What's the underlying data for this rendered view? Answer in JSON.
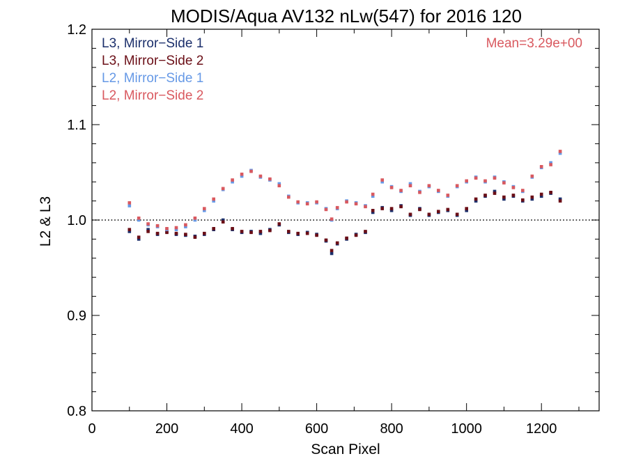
{
  "chart_data": {
    "type": "scatter",
    "title": "MODIS/Aqua AV132 nLw(547) for 2016 120",
    "xlabel": "Scan Pixel",
    "ylabel": "L2 & L3",
    "xlim": [
      0,
      1354
    ],
    "ylim": [
      0.8,
      1.2
    ],
    "xticks": [
      0,
      200,
      400,
      600,
      800,
      1000,
      1200
    ],
    "xtick_labels": [
      "0",
      "200",
      "400",
      "600",
      "800",
      "1000",
      "1200"
    ],
    "yticks": [
      0.8,
      0.9,
      1.0,
      1.1,
      1.2
    ],
    "ytick_labels": [
      "0.8",
      "0.9",
      "1.0",
      "1.1",
      "1.2"
    ],
    "reference_line": 1.0,
    "annotation": "Mean=3.29e+00",
    "annotation_color": "#d9595f",
    "grid": false,
    "legend_position": "top-left",
    "series": [
      {
        "name": "L3, Mirror−Side 1",
        "color": "#1b2f6b",
        "x": [
          100,
          125,
          150,
          175,
          200,
          225,
          250,
          275,
          300,
          325,
          350,
          375,
          400,
          425,
          450,
          475,
          500,
          525,
          550,
          575,
          600,
          625,
          640,
          655,
          680,
          705,
          730,
          750,
          775,
          800,
          825,
          850,
          875,
          900,
          925,
          950,
          975,
          1000,
          1025,
          1050,
          1075,
          1100,
          1125,
          1150,
          1175,
          1200,
          1225,
          1250
        ],
        "y": [
          0.988,
          0.98,
          0.99,
          0.985,
          0.988,
          0.985,
          0.984,
          0.983,
          0.985,
          0.99,
          1.0,
          0.99,
          0.987,
          0.988,
          0.986,
          0.99,
          0.995,
          0.987,
          0.985,
          0.987,
          0.985,
          0.978,
          0.965,
          0.975,
          0.98,
          0.985,
          0.987,
          1.008,
          1.013,
          1.01,
          1.015,
          1.005,
          1.012,
          1.005,
          1.008,
          1.01,
          1.005,
          1.01,
          1.02,
          1.025,
          1.03,
          1.022,
          1.025,
          1.02,
          1.022,
          1.025,
          1.028,
          1.022
        ]
      },
      {
        "name": "L3, Mirror−Side 2",
        "color": "#6b0f17",
        "x": [
          100,
          125,
          150,
          175,
          200,
          225,
          250,
          275,
          300,
          325,
          350,
          375,
          400,
          425,
          450,
          475,
          500,
          525,
          550,
          575,
          600,
          625,
          640,
          655,
          680,
          705,
          730,
          750,
          775,
          800,
          825,
          850,
          875,
          900,
          925,
          950,
          975,
          1000,
          1025,
          1050,
          1075,
          1100,
          1125,
          1150,
          1175,
          1200,
          1225,
          1250
        ],
        "y": [
          0.99,
          0.982,
          0.988,
          0.986,
          0.987,
          0.986,
          0.985,
          0.982,
          0.986,
          0.991,
          0.998,
          0.991,
          0.988,
          0.987,
          0.988,
          0.989,
          0.996,
          0.988,
          0.986,
          0.986,
          0.984,
          0.979,
          0.968,
          0.976,
          0.981,
          0.984,
          0.988,
          1.01,
          1.012,
          1.012,
          1.014,
          1.006,
          1.011,
          1.006,
          1.009,
          1.011,
          1.006,
          1.012,
          1.022,
          1.026,
          1.028,
          1.024,
          1.026,
          1.021,
          1.024,
          1.027,
          1.029,
          1.02
        ]
      },
      {
        "name": "L2, Mirror−Side 1",
        "color": "#6699e6",
        "x": [
          100,
          125,
          150,
          175,
          200,
          225,
          250,
          275,
          300,
          325,
          350,
          375,
          400,
          425,
          450,
          475,
          500,
          525,
          550,
          575,
          600,
          625,
          640,
          655,
          680,
          705,
          730,
          750,
          775,
          800,
          825,
          850,
          875,
          900,
          925,
          950,
          975,
          1000,
          1025,
          1050,
          1075,
          1100,
          1125,
          1150,
          1175,
          1200,
          1225,
          1250
        ],
        "y": [
          1.015,
          1.0,
          0.995,
          0.993,
          0.99,
          0.99,
          0.993,
          1.0,
          1.01,
          1.02,
          1.032,
          1.04,
          1.046,
          1.052,
          1.045,
          1.042,
          1.038,
          1.025,
          1.018,
          1.018,
          1.018,
          1.012,
          1.0,
          1.012,
          1.02,
          1.018,
          1.015,
          1.025,
          1.04,
          1.035,
          1.03,
          1.038,
          1.03,
          1.035,
          1.03,
          1.025,
          1.035,
          1.04,
          1.045,
          1.04,
          1.045,
          1.04,
          1.035,
          1.03,
          1.045,
          1.055,
          1.06,
          1.07
        ]
      },
      {
        "name": "L2, Mirror−Side 2",
        "color": "#d9595f",
        "x": [
          100,
          125,
          150,
          175,
          200,
          225,
          250,
          275,
          300,
          325,
          350,
          375,
          400,
          425,
          450,
          475,
          500,
          525,
          550,
          575,
          600,
          625,
          640,
          655,
          680,
          705,
          730,
          750,
          775,
          800,
          825,
          850,
          875,
          900,
          925,
          950,
          975,
          1000,
          1025,
          1050,
          1075,
          1100,
          1125,
          1150,
          1175,
          1200,
          1225,
          1250
        ],
        "y": [
          1.018,
          1.002,
          0.996,
          0.994,
          0.991,
          0.992,
          0.995,
          1.002,
          1.012,
          1.022,
          1.033,
          1.042,
          1.048,
          1.051,
          1.046,
          1.043,
          1.036,
          1.024,
          1.019,
          1.017,
          1.019,
          1.011,
          1.001,
          1.013,
          1.019,
          1.017,
          1.014,
          1.027,
          1.042,
          1.034,
          1.031,
          1.036,
          1.029,
          1.036,
          1.031,
          1.026,
          1.036,
          1.041,
          1.044,
          1.041,
          1.044,
          1.039,
          1.034,
          1.031,
          1.046,
          1.056,
          1.058,
          1.072
        ]
      }
    ]
  }
}
